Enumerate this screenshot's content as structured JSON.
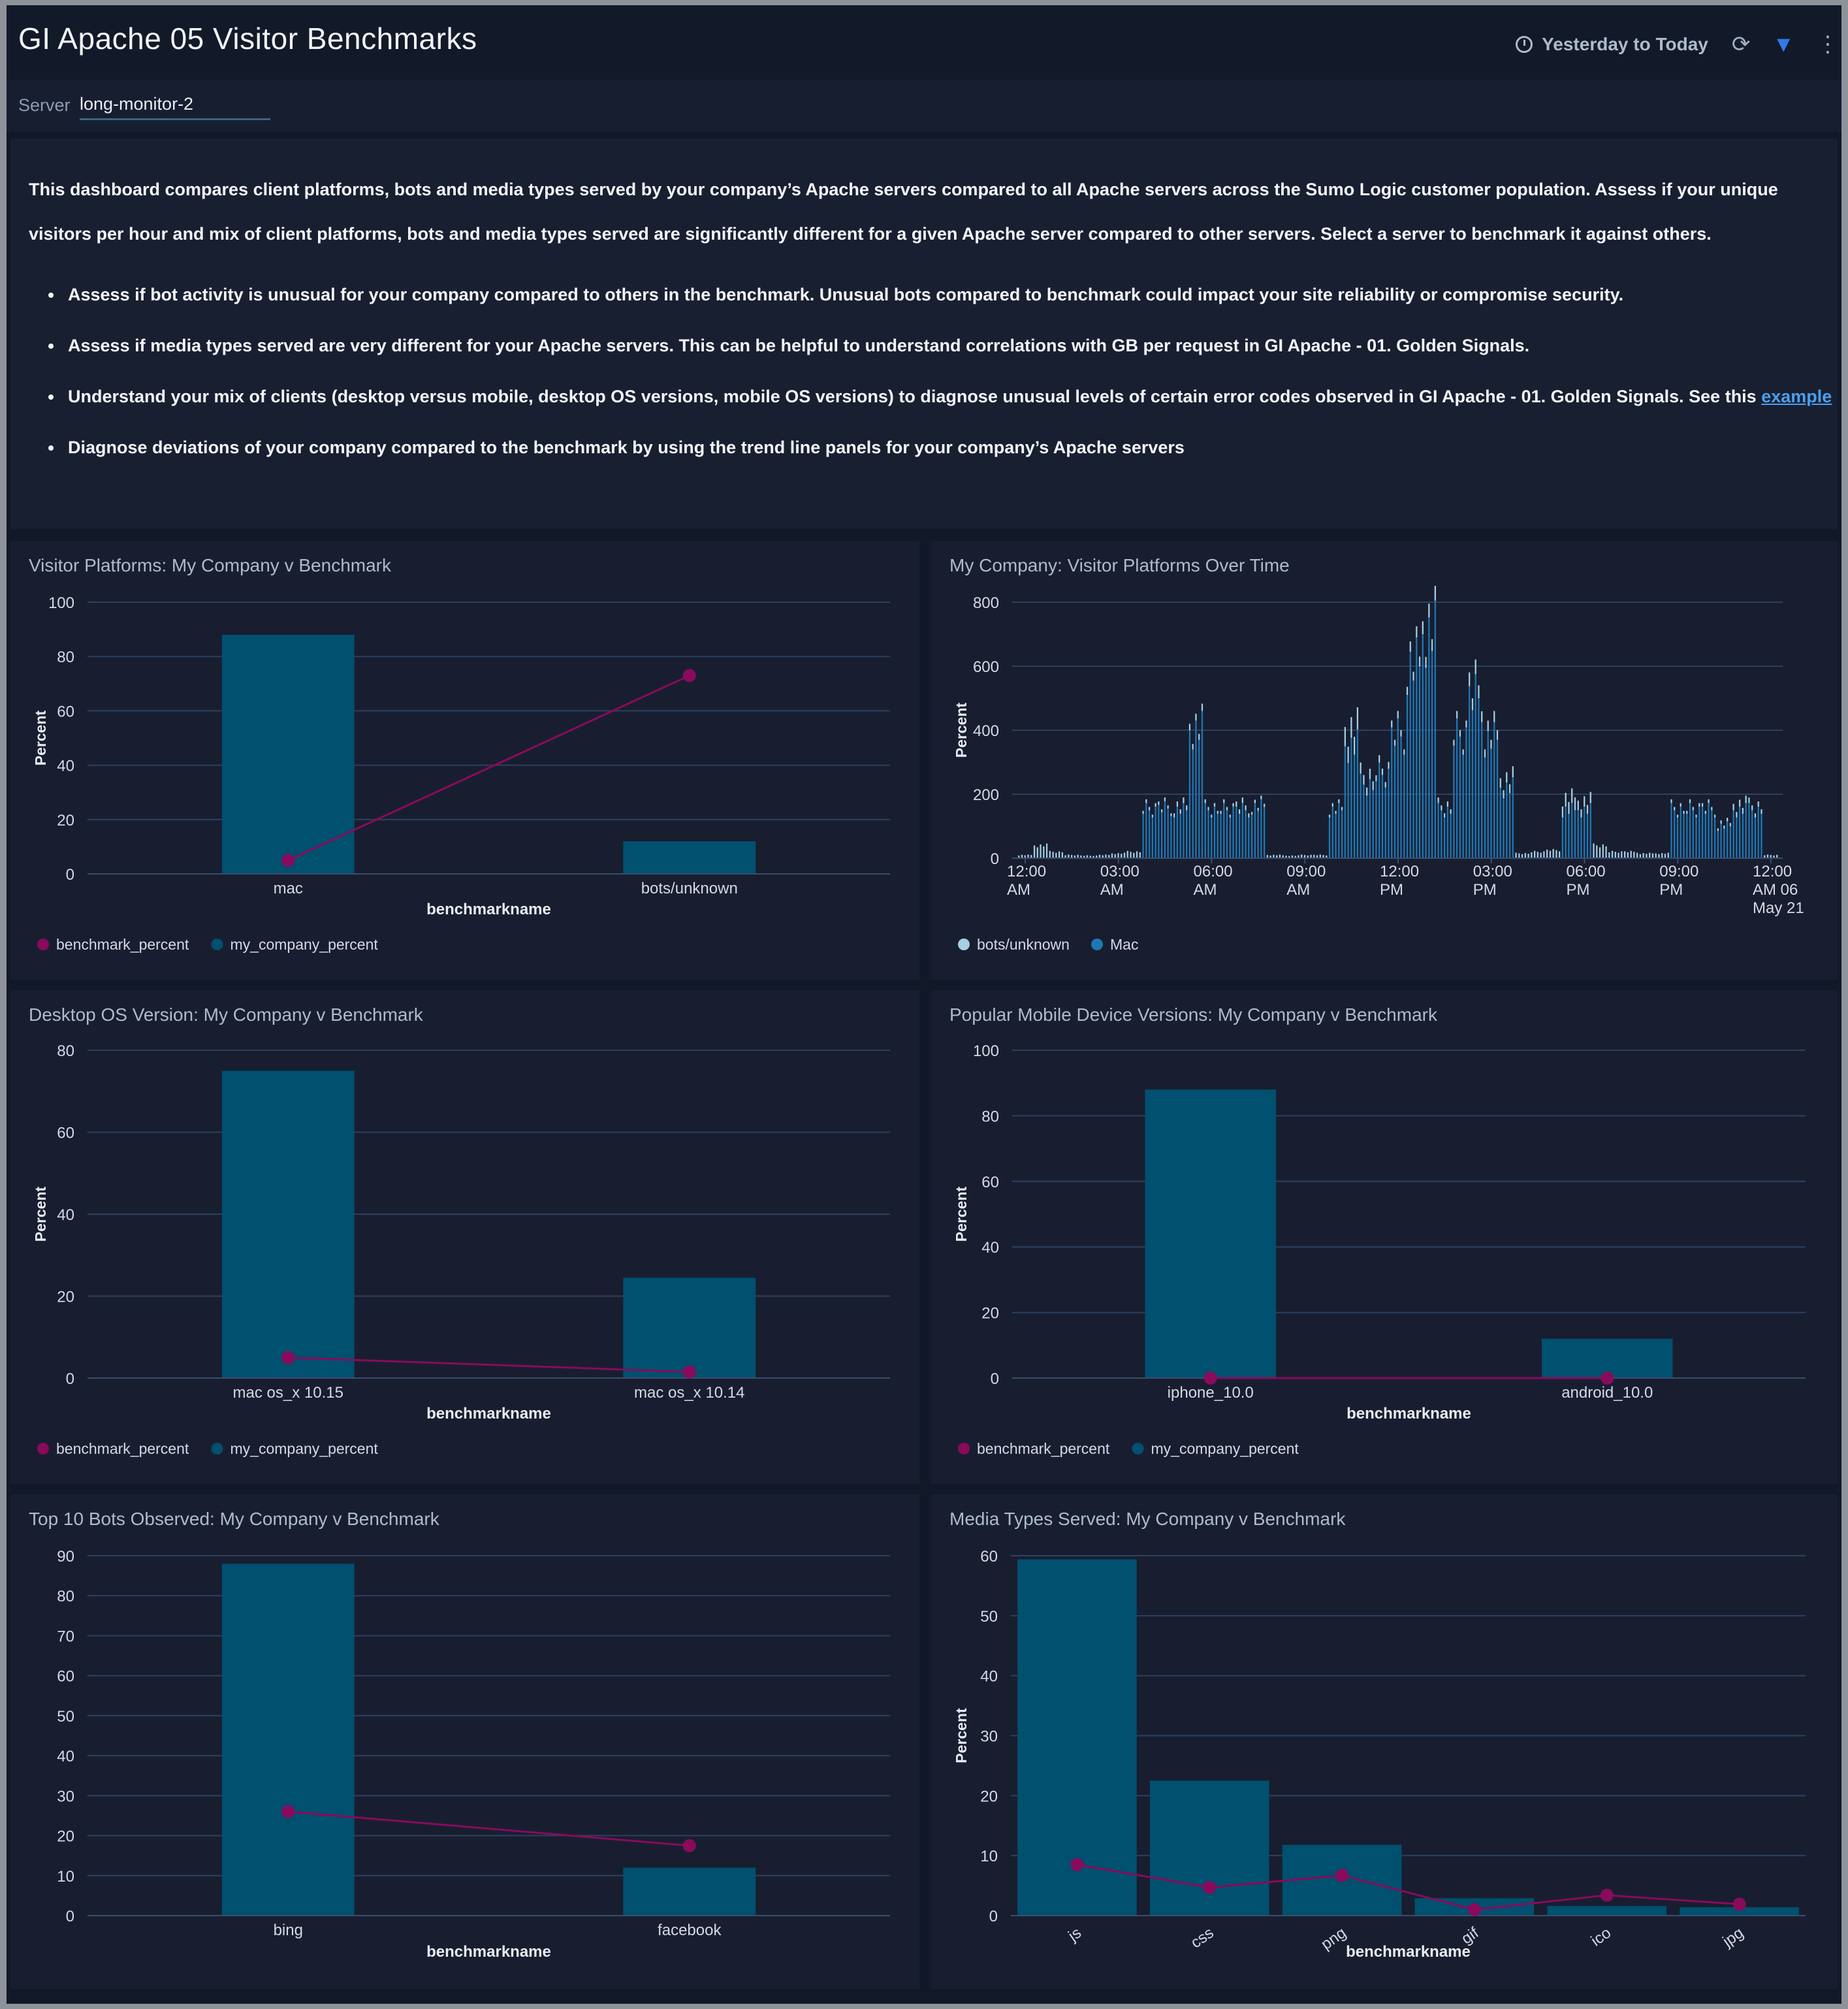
{
  "header": {
    "title": "GI Apache 05 Visitor Benchmarks",
    "time_range": "Yesterday to Today",
    "icons": [
      "clock-icon",
      "refresh-icon",
      "filter-icon",
      "more-vertical-icon"
    ]
  },
  "filters": {
    "server_label": "Server",
    "server_value": "long-monitor-2"
  },
  "description": {
    "intro": "This dashboard compares client platforms, bots and media types served by your company’s Apache servers compared to all Apache servers across the Sumo Logic customer population. Assess if your unique visitors per hour and mix of client platforms, bots and media types served are significantly different for a given Apache server compared to other servers. Select a server to benchmark it against others.",
    "bullets": [
      "Assess if bot activity is unusual for your company compared to others in the benchmark. Unusual bots compared to benchmark could impact your site reliability or compromise security.",
      "Assess if media types served are very different for your Apache servers. This can be helpful to understand correlations with GB per request in GI Apache - 01. Golden Signals.",
      "Understand your mix of clients (desktop versus mobile, desktop OS versions, mobile OS versions) to diagnose unusual levels of certain error codes observed in GI Apache - 01. Golden Signals. See this ",
      "Diagnose deviations of your company compared to the benchmark by using the trend line panels for your company’s Apache servers"
    ],
    "link_text": "example"
  },
  "colors": {
    "bar": "#00506f",
    "line": "#8a0a5c",
    "mac": "#1f78b4",
    "bots": "#a6cee3",
    "grid": "#2d405e"
  },
  "panels": [
    {
      "title": "Visitor Platforms: My Company v Benchmark"
    },
    {
      "title": "My Company: Visitor Platforms Over Time"
    },
    {
      "title": "Desktop OS Version: My Company v Benchmark"
    },
    {
      "title": "Popular Mobile Device Versions: My Company v Benchmark"
    },
    {
      "title": "Top 10 Bots Observed: My Company v Benchmark"
    },
    {
      "title": "Media Types Served: My Company v Benchmark"
    }
  ],
  "chart_data": [
    {
      "type": "bar",
      "title": "Visitor Platforms: My Company v Benchmark",
      "xlabel": "benchmarkname",
      "ylabel": "Percent",
      "ylim": [
        0,
        100
      ],
      "yticks": [
        0,
        20,
        40,
        60,
        80,
        100
      ],
      "grid": true,
      "legend": "bottom-left",
      "categories": [
        "mac",
        "bots/unknown"
      ],
      "series": [
        {
          "name": "benchmark_percent",
          "type": "line",
          "values": [
            5,
            73
          ]
        },
        {
          "name": "my_company_percent",
          "type": "bar",
          "values": [
            88,
            12
          ]
        }
      ]
    },
    {
      "type": "bar",
      "stacked": true,
      "title": "My Company: Visitor Platforms Over Time",
      "ylabel": "Percent",
      "ylim": [
        0,
        800
      ],
      "yticks": [
        0,
        200,
        400,
        600,
        800
      ],
      "grid": true,
      "legend": "bottom-left",
      "xtick_labels": [
        [
          "12:00",
          "AM"
        ],
        [
          "03:00",
          "AM"
        ],
        [
          "06:00",
          "AM"
        ],
        [
          "09:00",
          "AM"
        ],
        [
          "12:00",
          "PM"
        ],
        [
          "03:00",
          "PM"
        ],
        [
          "06:00",
          "PM"
        ],
        [
          "09:00",
          "PM"
        ],
        [
          "12:00",
          "AM 06",
          "May 21"
        ]
      ],
      "x": [
        "00:00",
        "00:30",
        "01:00",
        "01:30",
        "02:00",
        "02:30",
        "03:00",
        "03:30",
        "04:00",
        "04:30",
        "05:00",
        "05:30",
        "06:00",
        "06:30",
        "07:00",
        "07:30",
        "08:00",
        "08:30",
        "09:00",
        "09:30",
        "10:00",
        "10:30",
        "11:00",
        "11:30",
        "12:00",
        "12:30",
        "13:00",
        "13:30",
        "14:00",
        "14:30",
        "15:00",
        "15:30",
        "16:00",
        "16:30",
        "17:00",
        "17:30",
        "18:00",
        "18:30",
        "19:00",
        "19:30",
        "20:00",
        "20:30",
        "21:00",
        "21:30",
        "22:00",
        "22:30",
        "23:00",
        "23:30",
        "24:00"
      ],
      "series": [
        {
          "name": "bots/unknown",
          "values": [
            10,
            40,
            20,
            10,
            8,
            10,
            15,
            20,
            10,
            10,
            15,
            20,
            10,
            10,
            15,
            10,
            10,
            8,
            10,
            10,
            10,
            60,
            30,
            20,
            20,
            30,
            40,
            15,
            20,
            40,
            30,
            30,
            15,
            20,
            25,
            40,
            30,
            40,
            20,
            20,
            15,
            15,
            10,
            10,
            10,
            10,
            20,
            15,
            10
          ]
        },
        {
          "name": "Mac",
          "values": [
            0,
            0,
            0,
            0,
            0,
            0,
            0,
            0,
            150,
            155,
            150,
            400,
            150,
            150,
            150,
            160,
            0,
            0,
            0,
            0,
            150,
            350,
            230,
            260,
            380,
            600,
            700,
            150,
            380,
            500,
            370,
            220,
            0,
            0,
            0,
            150,
            150,
            0,
            0,
            0,
            0,
            0,
            150,
            150,
            150,
            100,
            150,
            150,
            0
          ]
        }
      ]
    },
    {
      "type": "bar",
      "title": "Desktop OS Version: My Company v Benchmark",
      "xlabel": "benchmarkname",
      "ylabel": "Percent",
      "ylim": [
        0,
        80
      ],
      "yticks": [
        0,
        20,
        40,
        60,
        80
      ],
      "grid": true,
      "legend": "bottom-left",
      "categories": [
        "mac os_x 10.15",
        "mac os_x 10.14"
      ],
      "series": [
        {
          "name": "benchmark_percent",
          "type": "line",
          "values": [
            5,
            1.5
          ]
        },
        {
          "name": "my_company_percent",
          "type": "bar",
          "values": [
            75,
            24.5
          ]
        }
      ]
    },
    {
      "type": "bar",
      "title": "Popular Mobile Device Versions: My Company v Benchmark",
      "xlabel": "benchmarkname",
      "ylabel": "Percent",
      "ylim": [
        0,
        100
      ],
      "yticks": [
        0,
        20,
        40,
        60,
        80,
        100
      ],
      "grid": true,
      "legend": "bottom-left",
      "categories": [
        "iphone_10.0",
        "android_10.0"
      ],
      "series": [
        {
          "name": "benchmark_percent",
          "type": "line",
          "values": [
            0,
            0
          ]
        },
        {
          "name": "my_company_percent",
          "type": "bar",
          "values": [
            88,
            12
          ]
        }
      ]
    },
    {
      "type": "bar",
      "title": "Top 10 Bots Observed: My Company v Benchmark",
      "xlabel": "benchmarkname",
      "ylabel": "",
      "ylim": [
        0,
        90
      ],
      "yticks": [
        0,
        10,
        20,
        30,
        40,
        50,
        60,
        70,
        80,
        90
      ],
      "grid": true,
      "categories": [
        "bing",
        "facebook"
      ],
      "series": [
        {
          "name": "benchmark_percent",
          "type": "line",
          "values": [
            26,
            17.5
          ]
        },
        {
          "name": "my_company_percent",
          "type": "bar",
          "values": [
            88,
            12
          ]
        }
      ]
    },
    {
      "type": "bar",
      "title": "Media Types Served: My Company v Benchmark",
      "xlabel": "benchmarkname",
      "ylabel": "Percent",
      "ylim": [
        0,
        60
      ],
      "yticks": [
        0,
        10,
        20,
        30,
        40,
        50,
        60
      ],
      "grid": true,
      "categories": [
        "js",
        "css",
        "png",
        "gif",
        "ico",
        "jpg"
      ],
      "series": [
        {
          "name": "benchmark_percent",
          "type": "line",
          "values": [
            8.5,
            4.7,
            6.7,
            1.0,
            3.4,
            1.9
          ]
        },
        {
          "name": "my_company_percent",
          "type": "bar",
          "values": [
            59.4,
            22.5,
            11.8,
            2.9,
            1.6,
            1.4
          ]
        }
      ]
    }
  ]
}
